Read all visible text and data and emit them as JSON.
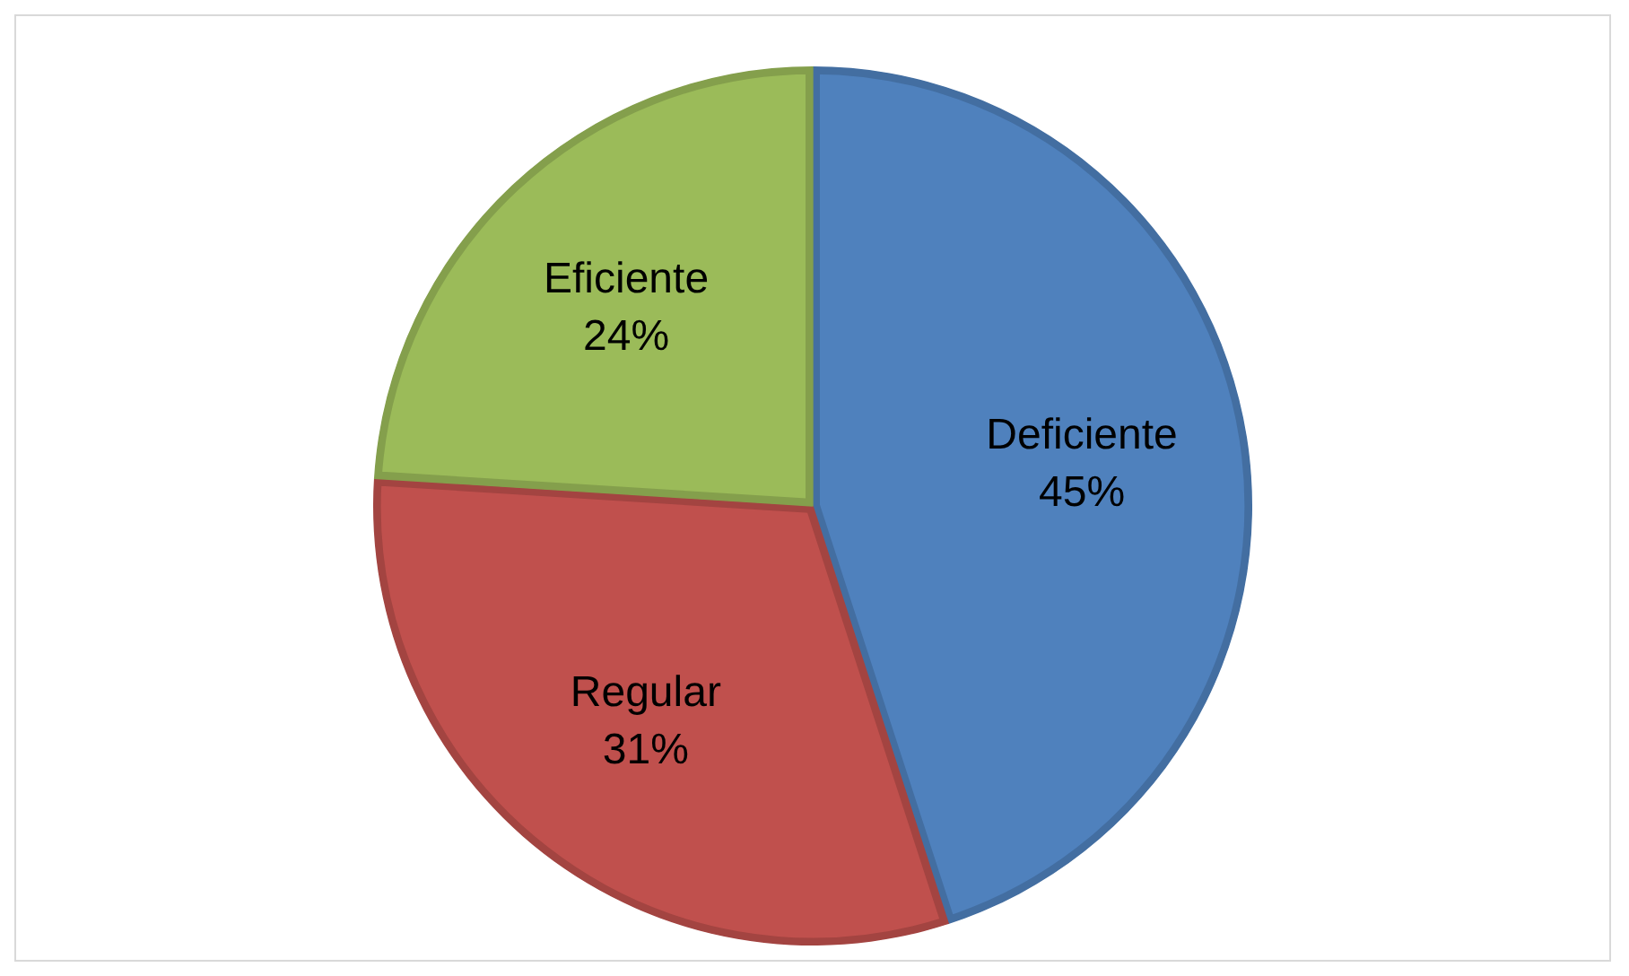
{
  "chart_data": {
    "type": "pie",
    "categories": [
      "Deficiente",
      "Regular",
      "Eficiente"
    ],
    "values": [
      45,
      31,
      24
    ],
    "colors": [
      "#4f81bd",
      "#c0504d",
      "#9bbb59"
    ],
    "value_labels": [
      "45%",
      "31%",
      "24%"
    ],
    "legend": false
  }
}
